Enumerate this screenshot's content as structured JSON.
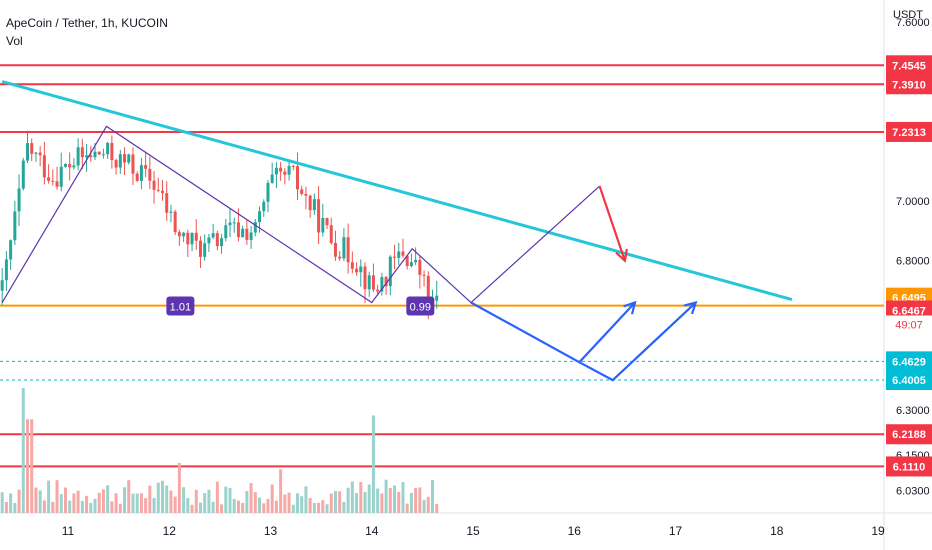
{
  "header": {
    "title": "ApeCoin / Tether, 1h, KUCOIN",
    "indicator": "Vol"
  },
  "price_axis": {
    "unit": "USDT",
    "ticks": [
      "7.6000",
      "7.0000",
      "6.8000",
      "6.3000",
      "6.1500",
      "6.0300"
    ],
    "badges": [
      {
        "text": "7.4545",
        "price": 7.4545,
        "kind": "red"
      },
      {
        "text": "7.3910",
        "price": 7.391,
        "kind": "red"
      },
      {
        "text": "7.2313",
        "price": 7.2313,
        "kind": "red"
      },
      {
        "text": "6.6495",
        "price": 6.6495,
        "kind": "orange"
      },
      {
        "text": "6.6467",
        "price": 6.6467,
        "kind": "current"
      },
      {
        "text": "49:07",
        "price": null,
        "kind": "countdown"
      },
      {
        "text": "6.4629",
        "price": 6.4629,
        "kind": "cyan"
      },
      {
        "text": "6.4005",
        "price": 6.4005,
        "kind": "cyan"
      },
      {
        "text": "6.2188",
        "price": 6.2188,
        "kind": "red"
      },
      {
        "text": "6.1110",
        "price": 6.111,
        "kind": "red"
      }
    ]
  },
  "time_axis": {
    "ticks": [
      "11",
      "12",
      "13",
      "14",
      "15",
      "16",
      "17",
      "18",
      "19"
    ]
  },
  "callouts": [
    {
      "text": "1.01",
      "day": 12.1,
      "price": 6.6467
    },
    {
      "text": "0.99",
      "day": 14.47,
      "price": 6.6467
    }
  ],
  "chart_data": {
    "type": "candlestick",
    "title": "ApeCoin / Tether, 1h, KUCOIN",
    "ylabel": "USDT",
    "x_axis": "day of month",
    "xlim": [
      10.35,
      19.05
    ],
    "ylim": [
      6.0,
      7.62
    ],
    "anchors": [
      [
        10.35,
        6.7
      ],
      [
        10.6,
        7.18
      ],
      [
        10.85,
        7.08
      ],
      [
        11.1,
        7.14
      ],
      [
        11.35,
        7.16
      ],
      [
        11.6,
        7.12
      ],
      [
        11.85,
        7.06
      ],
      [
        12.1,
        6.88
      ],
      [
        12.35,
        6.84
      ],
      [
        12.6,
        6.9
      ],
      [
        12.85,
        6.9
      ],
      [
        13.0,
        7.06
      ],
      [
        13.2,
        7.09
      ],
      [
        13.4,
        6.98
      ],
      [
        13.6,
        6.87
      ],
      [
        13.85,
        6.8
      ],
      [
        14.0,
        6.7
      ],
      [
        14.1,
        6.73
      ],
      [
        14.3,
        6.83
      ],
      [
        14.5,
        6.75
      ],
      [
        14.55,
        6.66
      ],
      [
        14.68,
        6.6467
      ]
    ],
    "volume": {
      "label": "Vol",
      "peaks": [
        [
          10.55,
          1.0
        ],
        [
          10.62,
          0.75
        ],
        [
          14.0,
          0.78
        ],
        [
          12.1,
          0.4
        ],
        [
          13.1,
          0.35
        ]
      ]
    },
    "horizontal_lines": [
      {
        "price": 7.4545,
        "color": "#f23645",
        "style": "solid"
      },
      {
        "price": 7.391,
        "color": "#f23645",
        "style": "solid"
      },
      {
        "price": 7.2313,
        "color": "#f23645",
        "style": "solid"
      },
      {
        "price": 6.6495,
        "color": "#ff9800",
        "style": "solid"
      },
      {
        "price": 6.4629,
        "color": "#00bcd4",
        "style": "dashed"
      },
      {
        "price": 6.4005,
        "color": "#00bcd4",
        "style": "dashed"
      },
      {
        "price": 6.2188,
        "color": "#f23645",
        "style": "solid"
      },
      {
        "price": 6.111,
        "color": "#f23645",
        "style": "solid"
      }
    ],
    "trendline": {
      "from": [
        10.35,
        7.4
      ],
      "to": [
        18.15,
        6.67
      ],
      "color": "#26c6da"
    },
    "drawings": [
      {
        "name": "wave-pattern-line",
        "color": "#5e35b1",
        "points": [
          [
            10.35,
            6.66
          ],
          [
            11.38,
            7.25
          ],
          [
            14.0,
            6.66
          ],
          [
            14.4,
            6.84
          ],
          [
            14.98,
            6.66
          ],
          [
            16.25,
            7.05
          ]
        ]
      },
      {
        "name": "bearish-projection-arrow",
        "color": "#f23645",
        "points": [
          [
            16.25,
            7.05
          ],
          [
            16.5,
            6.8
          ]
        ]
      },
      {
        "name": "bullish-projection-path",
        "color": "#2962ff",
        "points": [
          [
            14.98,
            6.66
          ],
          [
            16.05,
            6.46
          ],
          [
            16.6,
            6.66
          ],
          [
            16.05,
            6.46
          ],
          [
            16.38,
            6.4
          ],
          [
            17.2,
            6.66
          ]
        ]
      }
    ],
    "colors": {
      "up": "#26a69a",
      "down": "#ef5350",
      "vol_up": "#9bd3cc",
      "vol_down": "#f6a8a6"
    }
  }
}
